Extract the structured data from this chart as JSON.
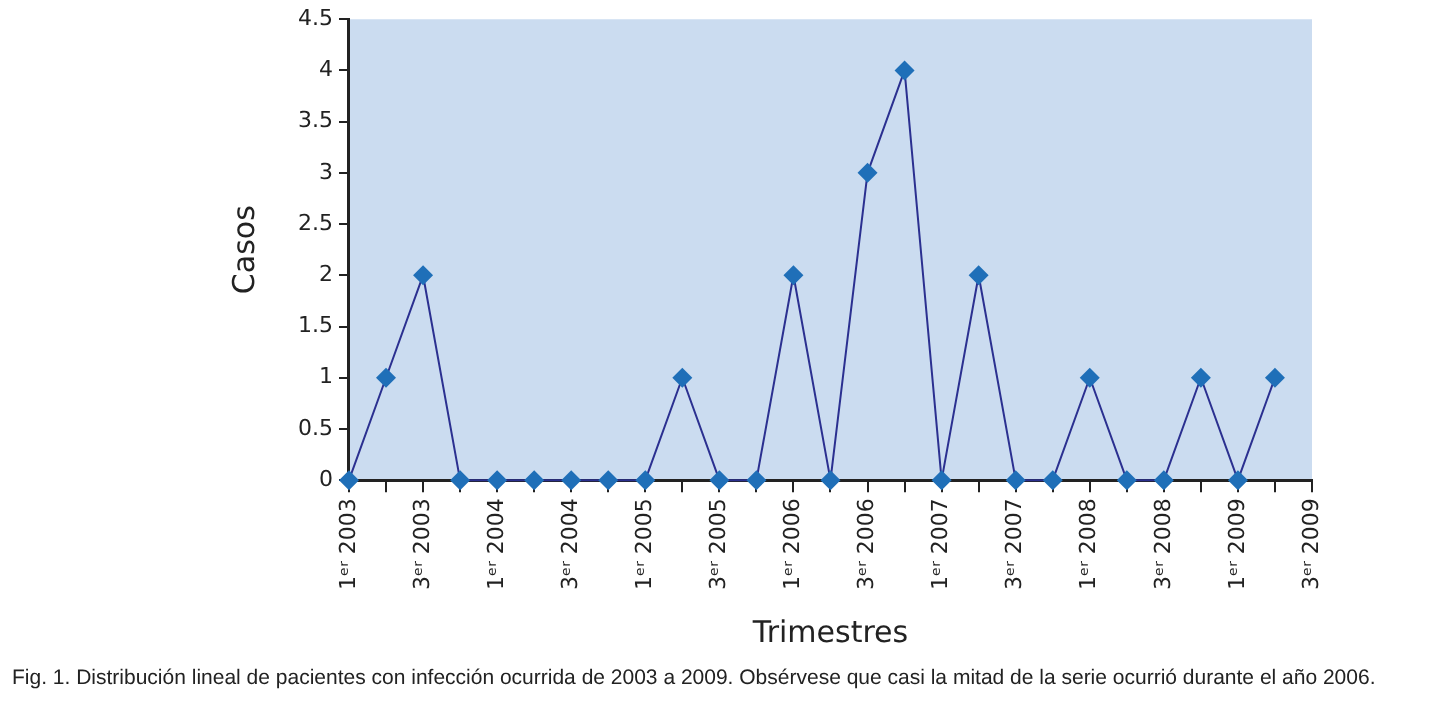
{
  "chart_data": {
    "type": "line",
    "xlabel": "Trimestres",
    "ylabel": "Casos",
    "annotations": [
      "Fig. 1. Distribución lineal de pacientes con infección ocurrida de 2003 a 2009. Obsérvese que casi la mitad de la serie ocurrió durante el año 2006."
    ],
    "categories": [
      "1ᵉʳ 2003",
      null,
      "3ᵉʳ 2003",
      null,
      "1ᵉʳ 2004",
      null,
      "3ᵉʳ 2004",
      null,
      "1ᵉʳ 2005",
      null,
      "3ᵉʳ 2005",
      null,
      "1ᵉʳ 2006",
      null,
      "3ᵉʳ 2006",
      null,
      "1ᵉʳ 2007",
      null,
      "3ᵉʳ 2007",
      null,
      "1ᵉʳ 2008",
      null,
      "3ᵉʳ 2008",
      null,
      "1ᵉʳ 2009",
      null,
      "3ᵉʳ 2009"
    ],
    "series": [
      {
        "color": "#2b3090",
        "values": [
          0,
          1,
          2,
          0,
          0,
          0,
          0,
          0,
          0,
          1,
          0,
          0,
          2,
          0,
          3,
          4,
          0,
          2,
          0,
          0,
          1,
          0,
          0,
          1,
          0,
          1,
          null
        ]
      }
    ],
    "marker": "diamond",
    "line_style": "solid",
    "grid": false,
    "legend": false,
    "ylim": [
      0,
      4.5
    ],
    "yticks": [
      0,
      0.5,
      1,
      1.5,
      2,
      2.5,
      3,
      3.5,
      4,
      4.5
    ]
  }
}
